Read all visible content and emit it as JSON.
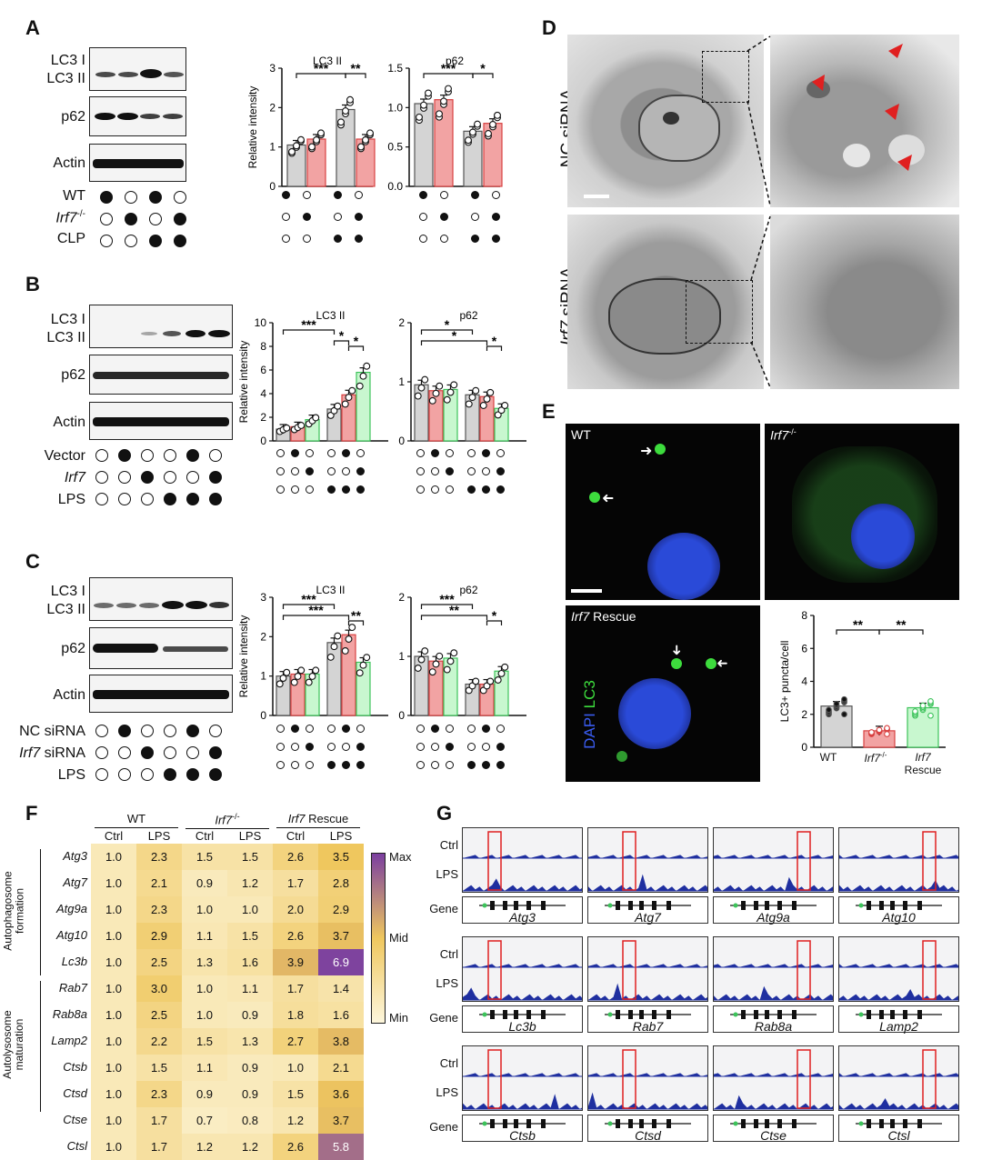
{
  "panels": {
    "A": "A",
    "B": "B",
    "C": "C",
    "D": "D",
    "E": "E",
    "F": "F",
    "G": "G"
  },
  "blot_labels": {
    "lc3i": "LC3 I",
    "lc3ii": "LC3 II",
    "p62": "p62",
    "actin": "Actin",
    "wt": "WT",
    "irf7ko": "Irf7",
    "irf7ko_sup": "-/-",
    "clp": "CLP",
    "vector": "Vector",
    "irf7": "Irf7",
    "lps": "LPS",
    "nc_sirna": "NC siRNA",
    "irf7_sirna_gene": "Irf7",
    "irf7_sirna_suffix": " siRNA"
  },
  "chart_data": [
    {
      "type": "bar",
      "panel": "A",
      "title": "LC3 II",
      "ylabel": "Relative intensity",
      "ylim": [
        0,
        3
      ],
      "yticks": [
        0,
        1,
        2,
        3
      ],
      "categories": [
        "WT",
        "Irf7-/-",
        "WT+CLP",
        "Irf7-/-+CLP"
      ],
      "values": [
        1.05,
        1.2,
        1.95,
        1.2
      ],
      "significance": [
        [
          "1",
          "3",
          "***"
        ],
        [
          "3",
          "4",
          "**"
        ]
      ]
    },
    {
      "type": "bar",
      "panel": "A",
      "title": "p62",
      "ylim": [
        0,
        1.5
      ],
      "yticks": [
        "0.0",
        "0.5",
        "1.0",
        "1.5"
      ],
      "categories": [
        "WT",
        "Irf7-/-",
        "WT+CLP",
        "Irf7-/-+CLP"
      ],
      "values": [
        1.05,
        1.1,
        0.7,
        0.8
      ],
      "significance": [
        [
          "1",
          "3",
          "***"
        ],
        [
          "3",
          "4",
          "*"
        ]
      ]
    },
    {
      "type": "bar",
      "panel": "B",
      "title": "LC3 II",
      "ylabel": "Relative intensity",
      "ylim": [
        0,
        10
      ],
      "yticks": [
        0,
        2,
        4,
        6,
        8,
        10
      ],
      "categories": [
        "Ctrl",
        "Vector",
        "Irf7",
        "LPS",
        "Vector+LPS",
        "Irf7+LPS"
      ],
      "values": [
        1.0,
        1.2,
        1.8,
        2.7,
        3.9,
        5.8
      ],
      "significance": [
        [
          "1",
          "4",
          "***"
        ],
        [
          "4",
          "5",
          "*"
        ],
        [
          "5",
          "6",
          "*"
        ]
      ]
    },
    {
      "type": "bar",
      "panel": "B",
      "title": "p62",
      "ylim": [
        0,
        2
      ],
      "yticks": [
        0,
        1,
        2
      ],
      "categories": [
        "Ctrl",
        "Vector",
        "Irf7",
        "LPS",
        "Vector+LPS",
        "Irf7+LPS"
      ],
      "values": [
        0.95,
        0.85,
        0.87,
        0.78,
        0.75,
        0.55
      ],
      "significance": [
        [
          "1",
          "4",
          "*"
        ],
        [
          "1",
          "5",
          "*"
        ],
        [
          "5",
          "6",
          "*"
        ]
      ]
    },
    {
      "type": "bar",
      "panel": "C",
      "title": "LC3 II",
      "ylabel": "Relative intensity",
      "ylim": [
        0,
        3
      ],
      "yticks": [
        0,
        1,
        2,
        3
      ],
      "categories": [
        "Ctrl",
        "NC siRNA",
        "Irf7 siRNA",
        "LPS",
        "NC siRNA+LPS",
        "Irf7 siRNA+LPS"
      ],
      "values": [
        1.0,
        1.05,
        1.05,
        1.85,
        2.05,
        1.35
      ],
      "significance": [
        [
          "1",
          "4",
          "***"
        ],
        [
          "1",
          "5",
          "***"
        ],
        [
          "5",
          "6",
          "**"
        ]
      ]
    },
    {
      "type": "bar",
      "panel": "C",
      "title": "p62",
      "ylim": [
        0,
        2
      ],
      "yticks": [
        0,
        1,
        2
      ],
      "categories": [
        "Ctrl",
        "NC siRNA",
        "Irf7 siRNA",
        "LPS",
        "NC siRNA+LPS",
        "Irf7 siRNA+LPS"
      ],
      "values": [
        1.0,
        0.92,
        0.97,
        0.53,
        0.53,
        0.75
      ],
      "significance": [
        [
          "1",
          "4",
          "***"
        ],
        [
          "1",
          "5",
          "**"
        ],
        [
          "5",
          "6",
          "*"
        ]
      ]
    },
    {
      "type": "bar",
      "panel": "E",
      "ylabel": "LC3+ puncta/cell",
      "ylim": [
        0,
        8
      ],
      "yticks": [
        0,
        2,
        4,
        6,
        8
      ],
      "categories": [
        "WT",
        "Irf7-/-",
        "Irf7 Rescue"
      ],
      "values": [
        2.5,
        1.0,
        2.4
      ],
      "significance": [
        [
          "1",
          "2",
          "**"
        ],
        [
          "2",
          "3",
          "**"
        ]
      ]
    },
    {
      "type": "heatmap",
      "panel": "F",
      "groups": [
        "WT",
        "Irf7-/-",
        "Irf7 Rescue"
      ],
      "columns": [
        "Ctrl",
        "LPS",
        "Ctrl",
        "LPS",
        "Ctrl",
        "LPS"
      ],
      "row_groups": [
        {
          "label": "Autophagosome formation",
          "rows": [
            "Atg3",
            "Atg7",
            "Atg9a",
            "Atg10",
            "Lc3b"
          ]
        },
        {
          "label": "Autolysosome maturation",
          "rows": [
            "Rab7",
            "Rab8a",
            "Lamp2",
            "Ctsb",
            "Ctsd",
            "Ctse",
            "Ctsl"
          ]
        }
      ],
      "rows": [
        "Atg3",
        "Atg7",
        "Atg9a",
        "Atg10",
        "Lc3b",
        "Rab7",
        "Rab8a",
        "Lamp2",
        "Ctsb",
        "Ctsd",
        "Ctse",
        "Ctsl"
      ],
      "values": [
        [
          "1.0",
          "2.3",
          "1.5",
          "1.5",
          "2.6",
          "3.5"
        ],
        [
          "1.0",
          "2.1",
          "0.9",
          "1.2",
          "1.7",
          "2.8"
        ],
        [
          "1.0",
          "2.3",
          "1.0",
          "1.0",
          "2.0",
          "2.9"
        ],
        [
          "1.0",
          "2.9",
          "1.1",
          "1.5",
          "2.6",
          "3.7"
        ],
        [
          "1.0",
          "2.5",
          "1.3",
          "1.6",
          "3.9",
          "6.9"
        ],
        [
          "1.0",
          "3.0",
          "1.0",
          "1.1",
          "1.7",
          "1.4"
        ],
        [
          "1.0",
          "2.5",
          "1.0",
          "0.9",
          "1.8",
          "1.6"
        ],
        [
          "1.0",
          "2.2",
          "1.5",
          "1.3",
          "2.7",
          "3.8"
        ],
        [
          "1.0",
          "1.5",
          "1.1",
          "0.9",
          "1.0",
          "2.1"
        ],
        [
          "1.0",
          "2.3",
          "0.9",
          "0.9",
          "1.5",
          "3.6"
        ],
        [
          "1.0",
          "1.7",
          "0.7",
          "0.8",
          "1.2",
          "3.7"
        ],
        [
          "1.0",
          "1.7",
          "1.2",
          "1.2",
          "2.6",
          "5.8"
        ]
      ],
      "legend": [
        "Max",
        "Mid",
        "Min"
      ],
      "colors": {
        "min": "#fdf6dc",
        "mid": "#efc75e",
        "max": "#7b3fa0"
      }
    }
  ],
  "panel_d": {
    "nc": "NC siRNA",
    "irf7_gene": "Irf7",
    "irf7_suffix": " siRNA"
  },
  "panel_e": {
    "wt": "WT",
    "ko": "Irf7",
    "ko_sup": "-/-",
    "rescue_gene": "Irf7",
    "rescue_suffix": " Rescue",
    "dapi": "DAPI",
    "lc3": "LC3",
    "x_wt": "WT",
    "x_ko": "Irf7",
    "x_ko_sup": "-/-",
    "x_rescue_gene": "Irf7",
    "x_rescue_suffix": "Rescue"
  },
  "panel_g": {
    "ctrl": "Ctrl",
    "lps": "LPS",
    "gene": "Gene",
    "genes": [
      "Atg3",
      "Atg7",
      "Atg9a",
      "Atg10",
      "Lc3b",
      "Rab7",
      "Rab8a",
      "Lamp2",
      "Ctsb",
      "Ctsd",
      "Ctse",
      "Ctsl"
    ]
  },
  "colors": {
    "grey_bar": "#d4d4d4",
    "red_bar": "#f2a3a3",
    "green_bar": "#c8f7cf",
    "green_outline": "#4cd964",
    "red_outline": "#e53935",
    "track_blue": "#1f2fa0",
    "highlight": "#e02020"
  }
}
